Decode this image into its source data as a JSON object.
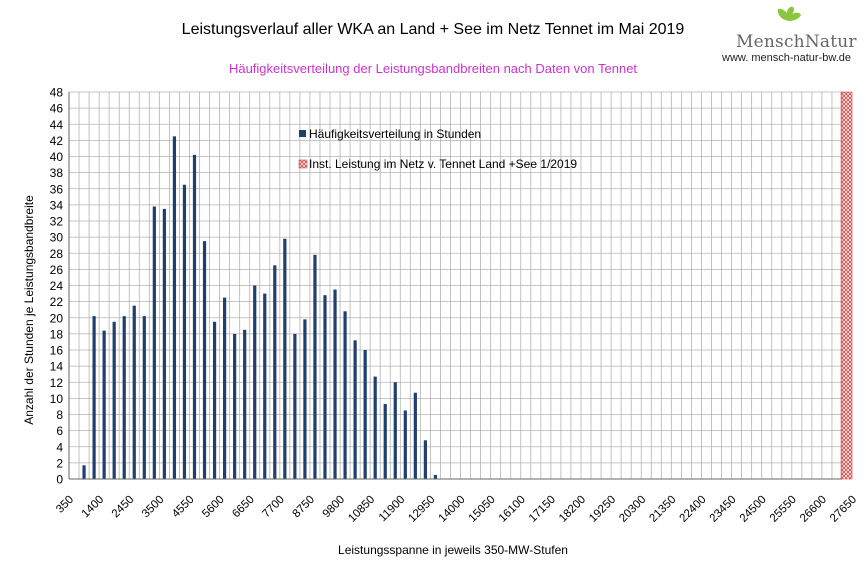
{
  "colors": {
    "bar": "#1f3f6e",
    "grid": "#b3b3b3",
    "subtitle": "#cc33cc",
    "hatch": "#d9534f",
    "leaf": "#8cc63f"
  },
  "logo": {
    "word": "Mensch",
    "word2": "Natur",
    "url": "www. mensch-natur-bw.de"
  },
  "chart_data": {
    "type": "bar",
    "title": "Leistungsverlauf aller WKA an Land + See im Netz Tennet im Mai 2019",
    "subtitle": "Häufigkeitsverteilung der Leistungsbandbreiten nach Daten von Tennet",
    "xlabel": "Leistungsspanne in jeweils 350-MW-Stufen",
    "ylabel": "Anzahl der Stunden je Leistungsbandbreite",
    "ylim": [
      0,
      48
    ],
    "yticks": [
      "0",
      "2",
      "4",
      "6",
      "8",
      "10",
      "12",
      "14",
      "16",
      "18",
      "20",
      "22",
      "24",
      "26",
      "28",
      "30",
      "32",
      "34",
      "36",
      "38",
      "40",
      "42",
      "44",
      "46",
      "48"
    ],
    "xtick_labels": [
      "350",
      "1400",
      "2450",
      "3500",
      "4550",
      "5600",
      "6650",
      "7700",
      "8750",
      "9800",
      "10850",
      "11900",
      "12950",
      "14000",
      "15050",
      "16100",
      "17150",
      "18200",
      "19250",
      "20300",
      "21350",
      "22400",
      "23450",
      "24500",
      "25550",
      "26600",
      "27650"
    ],
    "bin_start": 350,
    "bin_width": 350,
    "bin_count": 77,
    "series": [
      {
        "name": "Häufigkeitsverteilung in Stunden",
        "values": [
          1.7,
          20.2,
          18.4,
          19.5,
          20.2,
          21.5,
          20.2,
          33.8,
          33.5,
          42.5,
          36.5,
          40.2,
          29.5,
          19.5,
          22.5,
          18.0,
          18.5,
          24.0,
          23.0,
          26.5,
          29.8,
          18.0,
          19.8,
          27.8,
          22.8,
          23.5,
          20.8,
          17.2,
          16.0,
          12.7,
          9.3,
          12.0,
          8.5,
          10.7,
          4.8,
          0.5
        ]
      },
      {
        "name": "Inst. Leistung im Netz v. Tennet  Land +See 1/2019",
        "value_x_mw": 27300,
        "value": 48
      }
    ],
    "legend_position": "upper-center",
    "grid": true
  }
}
